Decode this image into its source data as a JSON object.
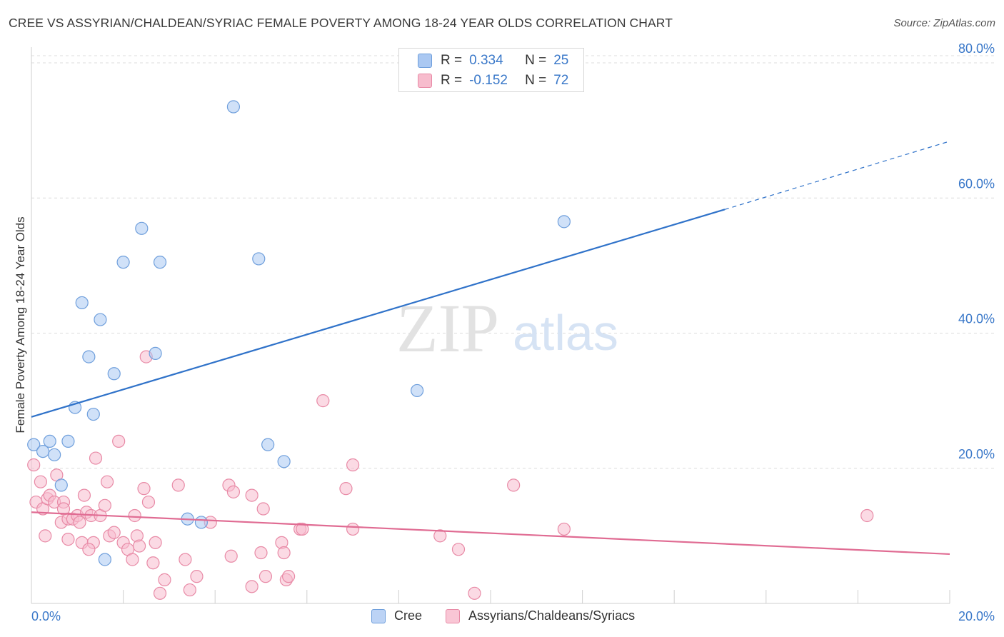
{
  "title": "CREE VS ASSYRIAN/CHALDEAN/SYRIAC FEMALE POVERTY AMONG 18-24 YEAR OLDS CORRELATION CHART",
  "source": "Source: ZipAtlas.com",
  "watermark": {
    "zip": "ZIP",
    "atlas": "atlas"
  },
  "legend_box": {
    "rows": [
      {
        "r_label": "R =",
        "r_value": "0.334",
        "n_label": "N =",
        "n_value": "25",
        "color": "#aac8f2",
        "border": "#6f9fdc"
      },
      {
        "r_label": "R =",
        "r_value": "-0.152",
        "n_label": "N =",
        "n_value": "72",
        "color": "#f7bccd",
        "border": "#e88aa6"
      }
    ]
  },
  "bottom_legend": [
    {
      "label": "Cree",
      "color": "#bcd3f5",
      "border": "#6f9fdc"
    },
    {
      "label": "Assyrians/Chaldeans/Syriacs",
      "color": "#f9c6d5",
      "border": "#e88aa6"
    }
  ],
  "chart_data": {
    "type": "scatter",
    "title": "CREE VS ASSYRIAN/CHALDEAN/SYRIAC FEMALE POVERTY AMONG 18-24 YEAR OLDS CORRELATION CHART",
    "xlabel": "",
    "ylabel": "Female Poverty Among 18-24 Year Olds",
    "xlim": [
      0,
      20
    ],
    "ylim": [
      0,
      80
    ],
    "x_tick_labels": [
      "0.0%",
      "20.0%"
    ],
    "y_tick_labels": [
      "20.0%",
      "40.0%",
      "60.0%",
      "80.0%"
    ],
    "y_ticks": [
      20,
      40,
      60,
      80
    ],
    "grid": true,
    "legend_position": "bottom-center",
    "series": [
      {
        "name": "Cree",
        "color": "#aac8f2",
        "stroke": "#6f9fdc",
        "line_color": "#2f72c9",
        "trend": {
          "x0": 0,
          "y0": 27.6,
          "x1": 15.1,
          "y1": 58.3,
          "dash_to_x": 20,
          "dash_to_y": 68.4
        },
        "points": [
          [
            0.05,
            23.5
          ],
          [
            0.25,
            22.5
          ],
          [
            0.4,
            24.0
          ],
          [
            0.5,
            22.0
          ],
          [
            0.65,
            17.5
          ],
          [
            0.8,
            24.0
          ],
          [
            0.95,
            29.0
          ],
          [
            1.1,
            44.5
          ],
          [
            1.25,
            36.5
          ],
          [
            1.35,
            28.0
          ],
          [
            1.5,
            42.0
          ],
          [
            1.8,
            34.0
          ],
          [
            2.0,
            50.5
          ],
          [
            2.4,
            55.5
          ],
          [
            2.7,
            37.0
          ],
          [
            2.8,
            50.5
          ],
          [
            3.4,
            12.5
          ],
          [
            3.7,
            12.0
          ],
          [
            4.4,
            73.5
          ],
          [
            4.95,
            51.0
          ],
          [
            5.15,
            23.5
          ],
          [
            5.5,
            21.0
          ],
          [
            8.4,
            31.5
          ],
          [
            11.6,
            56.5
          ],
          [
            1.6,
            6.5
          ]
        ]
      },
      {
        "name": "Assyrians/Chaldeans/Syriacs",
        "color": "#f7bccd",
        "stroke": "#e88aa6",
        "line_color": "#e06c93",
        "trend": {
          "x0": 0,
          "y0": 13.5,
          "x1": 20,
          "y1": 7.3
        },
        "points": [
          [
            0.05,
            20.5
          ],
          [
            0.1,
            15.0
          ],
          [
            0.2,
            18.0
          ],
          [
            0.25,
            14.0
          ],
          [
            0.35,
            15.5
          ],
          [
            0.4,
            16.0
          ],
          [
            0.5,
            15.0
          ],
          [
            0.55,
            19.0
          ],
          [
            0.65,
            12.0
          ],
          [
            0.7,
            15.0
          ],
          [
            0.8,
            12.5
          ],
          [
            0.8,
            9.5
          ],
          [
            0.9,
            12.5
          ],
          [
            1.0,
            13.0
          ],
          [
            1.05,
            12.0
          ],
          [
            1.1,
            9.0
          ],
          [
            1.15,
            16.0
          ],
          [
            1.2,
            13.5
          ],
          [
            1.3,
            13.0
          ],
          [
            1.35,
            9.0
          ],
          [
            1.4,
            21.5
          ],
          [
            1.5,
            13.0
          ],
          [
            1.6,
            14.5
          ],
          [
            1.65,
            18.0
          ],
          [
            1.7,
            10.0
          ],
          [
            1.8,
            10.5
          ],
          [
            1.9,
            24.0
          ],
          [
            2.0,
            9.0
          ],
          [
            2.1,
            8.0
          ],
          [
            2.2,
            6.5
          ],
          [
            2.25,
            13.0
          ],
          [
            2.3,
            10.0
          ],
          [
            2.45,
            17.0
          ],
          [
            2.5,
            36.5
          ],
          [
            2.55,
            15.0
          ],
          [
            2.65,
            6.0
          ],
          [
            2.7,
            9.0
          ],
          [
            2.8,
            1.5
          ],
          [
            2.9,
            3.5
          ],
          [
            3.2,
            17.5
          ],
          [
            3.35,
            6.5
          ],
          [
            3.45,
            2.0
          ],
          [
            3.6,
            4.0
          ],
          [
            3.9,
            12.0
          ],
          [
            4.3,
            17.5
          ],
          [
            4.35,
            7.0
          ],
          [
            4.4,
            16.5
          ],
          [
            4.8,
            16.0
          ],
          [
            4.8,
            2.5
          ],
          [
            5.05,
            14.0
          ],
          [
            5.0,
            7.5
          ],
          [
            5.1,
            4.0
          ],
          [
            5.45,
            9.0
          ],
          [
            5.5,
            7.5
          ],
          [
            5.55,
            3.5
          ],
          [
            5.6,
            4.0
          ],
          [
            5.85,
            11.0
          ],
          [
            5.9,
            11.0
          ],
          [
            6.35,
            30.0
          ],
          [
            6.85,
            17.0
          ],
          [
            7.0,
            20.5
          ],
          [
            7.0,
            11.0
          ],
          [
            8.9,
            10.0
          ],
          [
            9.3,
            8.0
          ],
          [
            9.65,
            1.5
          ],
          [
            10.5,
            17.5
          ],
          [
            11.6,
            11.0
          ],
          [
            18.2,
            13.0
          ],
          [
            0.3,
            10.0
          ],
          [
            0.7,
            14.0
          ],
          [
            1.25,
            8.0
          ],
          [
            2.35,
            8.5
          ]
        ]
      }
    ]
  }
}
